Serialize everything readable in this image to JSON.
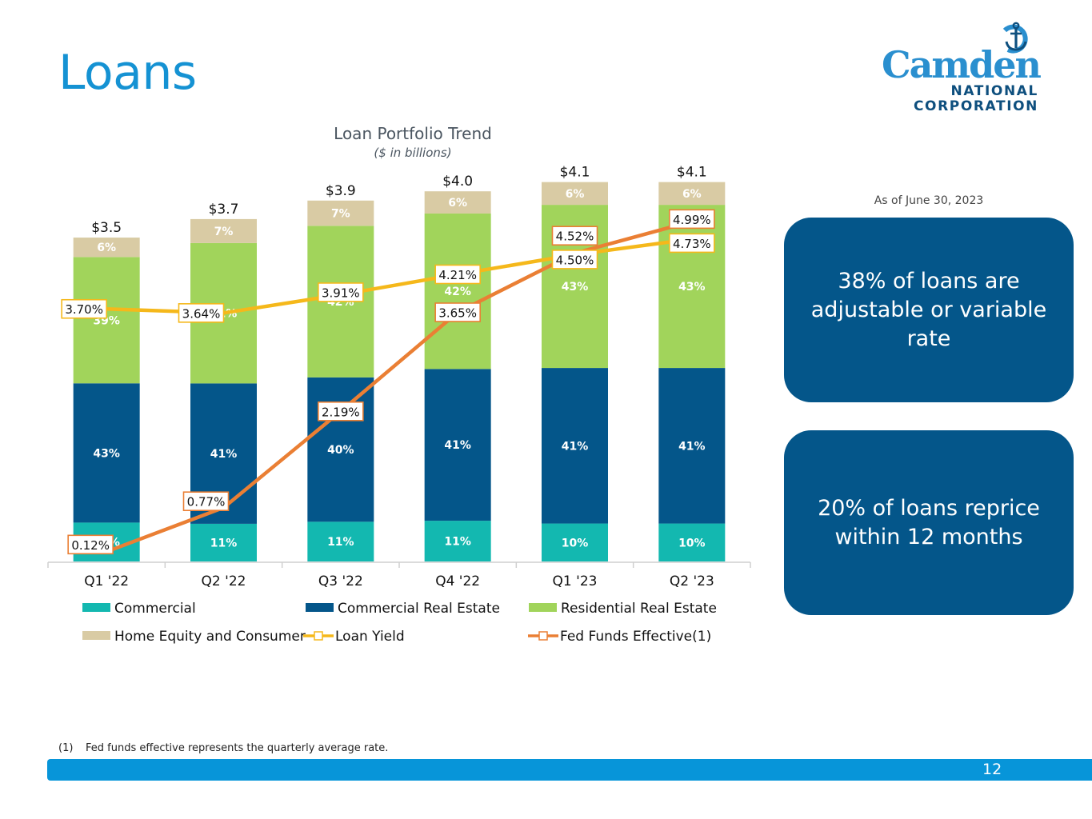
{
  "page": {
    "title": "Loans",
    "page_number": "12",
    "footnote": {
      "marker": "(1)",
      "text": "Fed funds effective represents the quarterly average rate."
    }
  },
  "logo": {
    "wordmark": "Camden",
    "line1": "NATIONAL",
    "line2": "CORPORATION",
    "icon": "anchor-icon"
  },
  "callouts": {
    "as_of": "As of June 30, 2023",
    "items": [
      {
        "text": "38% of loans are adjustable or variable rate"
      },
      {
        "text": "20% of loans reprice within 12 months"
      }
    ]
  },
  "colors": {
    "title_blue": "#1592d3",
    "callout_navy": "#04568a",
    "footer_blue": "#0795d9",
    "commercial": "#13b8b0",
    "commercial_real_estate": "#04568a",
    "residential_real_estate": "#a1d45b",
    "home_equity_consumer": "#d9cba4",
    "loan_yield": "#f5b81b",
    "fed_funds": "#ea7f34"
  },
  "chart_data": {
    "type": "bar",
    "stacked": true,
    "title": "Loan Portfolio Trend",
    "subtitle": "($ in billions)",
    "xlabel": "",
    "ylabel": "",
    "categories": [
      "Q1 '22",
      "Q2 '22",
      "Q3 '22",
      "Q4 '22",
      "Q1 '23",
      "Q2 '23"
    ],
    "totals": [
      3.5,
      3.7,
      3.9,
      4.0,
      4.1,
      4.1
    ],
    "total_labels": [
      "$3.5",
      "$3.7",
      "$3.9",
      "$4.0",
      "$4.1",
      "$4.1"
    ],
    "ylim": [
      0,
      4.2
    ],
    "series": [
      {
        "name": "Commercial",
        "key": "commercial",
        "values": [
          12,
          11,
          11,
          11,
          10,
          10
        ],
        "unit": "% of total"
      },
      {
        "name": "Commercial Real Estate",
        "key": "commercial_real_estate",
        "values": [
          43,
          41,
          40,
          41,
          41,
          41
        ],
        "unit": "% of total"
      },
      {
        "name": "Residential Real Estate",
        "key": "residential_real_estate",
        "values": [
          39,
          41,
          42,
          42,
          43,
          43
        ],
        "unit": "% of total"
      },
      {
        "name": "Home Equity and Consumer",
        "key": "home_equity_consumer",
        "values": [
          6,
          7,
          7,
          6,
          6,
          6
        ],
        "unit": "% of total"
      }
    ],
    "lines": [
      {
        "name": "Loan Yield",
        "key": "loan_yield",
        "values": [
          3.7,
          3.64,
          3.91,
          4.21,
          4.5,
          4.73
        ],
        "labels": [
          "3.70%",
          "3.64%",
          "3.91%",
          "4.21%",
          "4.50%",
          "4.73%"
        ],
        "axis": "secondary",
        "unit": "%"
      },
      {
        "name": "Fed Funds Effective(1)",
        "key": "fed_funds",
        "values": [
          0.12,
          0.77,
          2.19,
          3.65,
          4.52,
          4.99
        ],
        "labels": [
          "0.12%",
          "0.77%",
          "2.19%",
          "3.65%",
          "4.52%",
          "4.99%"
        ],
        "axis": "secondary",
        "unit": "%"
      }
    ],
    "secondary_ylim": [
      0,
      5.0
    ],
    "legend": {
      "placement": "bottom",
      "entries": [
        "Commercial",
        "Commercial Real Estate",
        "Residential Real Estate",
        "Home Equity and Consumer",
        "Loan Yield",
        "Fed Funds Effective(1)"
      ]
    },
    "grid": false
  }
}
